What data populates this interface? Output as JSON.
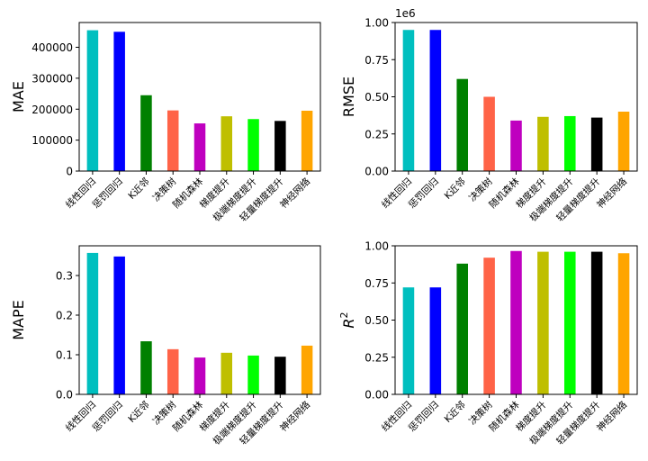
{
  "chart_data": [
    {
      "type": "bar",
      "ylabel": "MAE",
      "categories": [
        "线性回归",
        "惩罚回归",
        "K近邻",
        "决策树",
        "随机森林",
        "梯度提升",
        "极端梯度提升",
        "轻量梯度提升",
        "神经网络"
      ],
      "values": [
        455000,
        450000,
        245000,
        196000,
        154000,
        177000,
        168000,
        162000,
        195000
      ],
      "yticks": [
        "0",
        "100000",
        "200000",
        "300000",
        "400000"
      ],
      "ylim": [
        0,
        480000
      ],
      "colors": [
        "#00bfbf",
        "#0000ff",
        "#008000",
        "#ff6347",
        "#bf00bf",
        "#bfbf00",
        "#00ff00",
        "#000000",
        "#ffa500"
      ]
    },
    {
      "type": "bar",
      "ylabel": "RMSE",
      "offset_text": "1e6",
      "categories": [
        "线性回归",
        "惩罚回归",
        "K近邻",
        "决策树",
        "随机森林",
        "梯度提升",
        "极端梯度提升",
        "轻量梯度提升",
        "神经网络"
      ],
      "values": [
        0.95,
        0.95,
        0.62,
        0.5,
        0.34,
        0.365,
        0.37,
        0.36,
        0.4
      ],
      "yticks": [
        "0.00",
        "0.25",
        "0.50",
        "0.75",
        "1.00"
      ],
      "ylim": [
        0,
        1.0
      ],
      "colors": [
        "#00bfbf",
        "#0000ff",
        "#008000",
        "#ff6347",
        "#bf00bf",
        "#bfbf00",
        "#00ff00",
        "#000000",
        "#ffa500"
      ]
    },
    {
      "type": "bar",
      "ylabel": "MAPE",
      "categories": [
        "线性回归",
        "惩罚回归",
        "K近邻",
        "决策树",
        "随机森林",
        "梯度提升",
        "极端梯度提升",
        "轻量梯度提升",
        "神经网络"
      ],
      "values": [
        0.357,
        0.348,
        0.134,
        0.114,
        0.093,
        0.105,
        0.098,
        0.095,
        0.123
      ],
      "yticks": [
        "0.0",
        "0.1",
        "0.2",
        "0.3"
      ],
      "ylim": [
        0,
        0.375
      ],
      "colors": [
        "#00bfbf",
        "#0000ff",
        "#008000",
        "#ff6347",
        "#bf00bf",
        "#bfbf00",
        "#00ff00",
        "#000000",
        "#ffa500"
      ]
    },
    {
      "type": "bar",
      "ylabel": "R",
      "ylabel_superscript": "2",
      "categories": [
        "线性回归",
        "惩罚回归",
        "K近邻",
        "决策树",
        "随机森林",
        "梯度提升",
        "极端梯度提升",
        "轻量梯度提升",
        "神经网络"
      ],
      "values": [
        0.72,
        0.72,
        0.88,
        0.92,
        0.965,
        0.96,
        0.96,
        0.96,
        0.95
      ],
      "yticks": [
        "0.00",
        "0.25",
        "0.50",
        "0.75",
        "1.00"
      ],
      "ylim": [
        0,
        1.0
      ],
      "colors": [
        "#00bfbf",
        "#0000ff",
        "#008000",
        "#ff6347",
        "#bf00bf",
        "#bfbf00",
        "#00ff00",
        "#000000",
        "#ffa500"
      ]
    }
  ]
}
